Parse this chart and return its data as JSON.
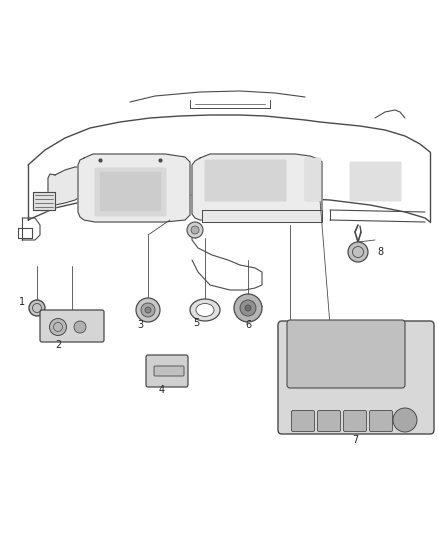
{
  "bg_color": "#ffffff",
  "line_color": "#4a4a4a",
  "figsize": [
    4.38,
    5.33
  ],
  "dpi": 100,
  "label_fontsize": 7.0,
  "lw": 0.7
}
